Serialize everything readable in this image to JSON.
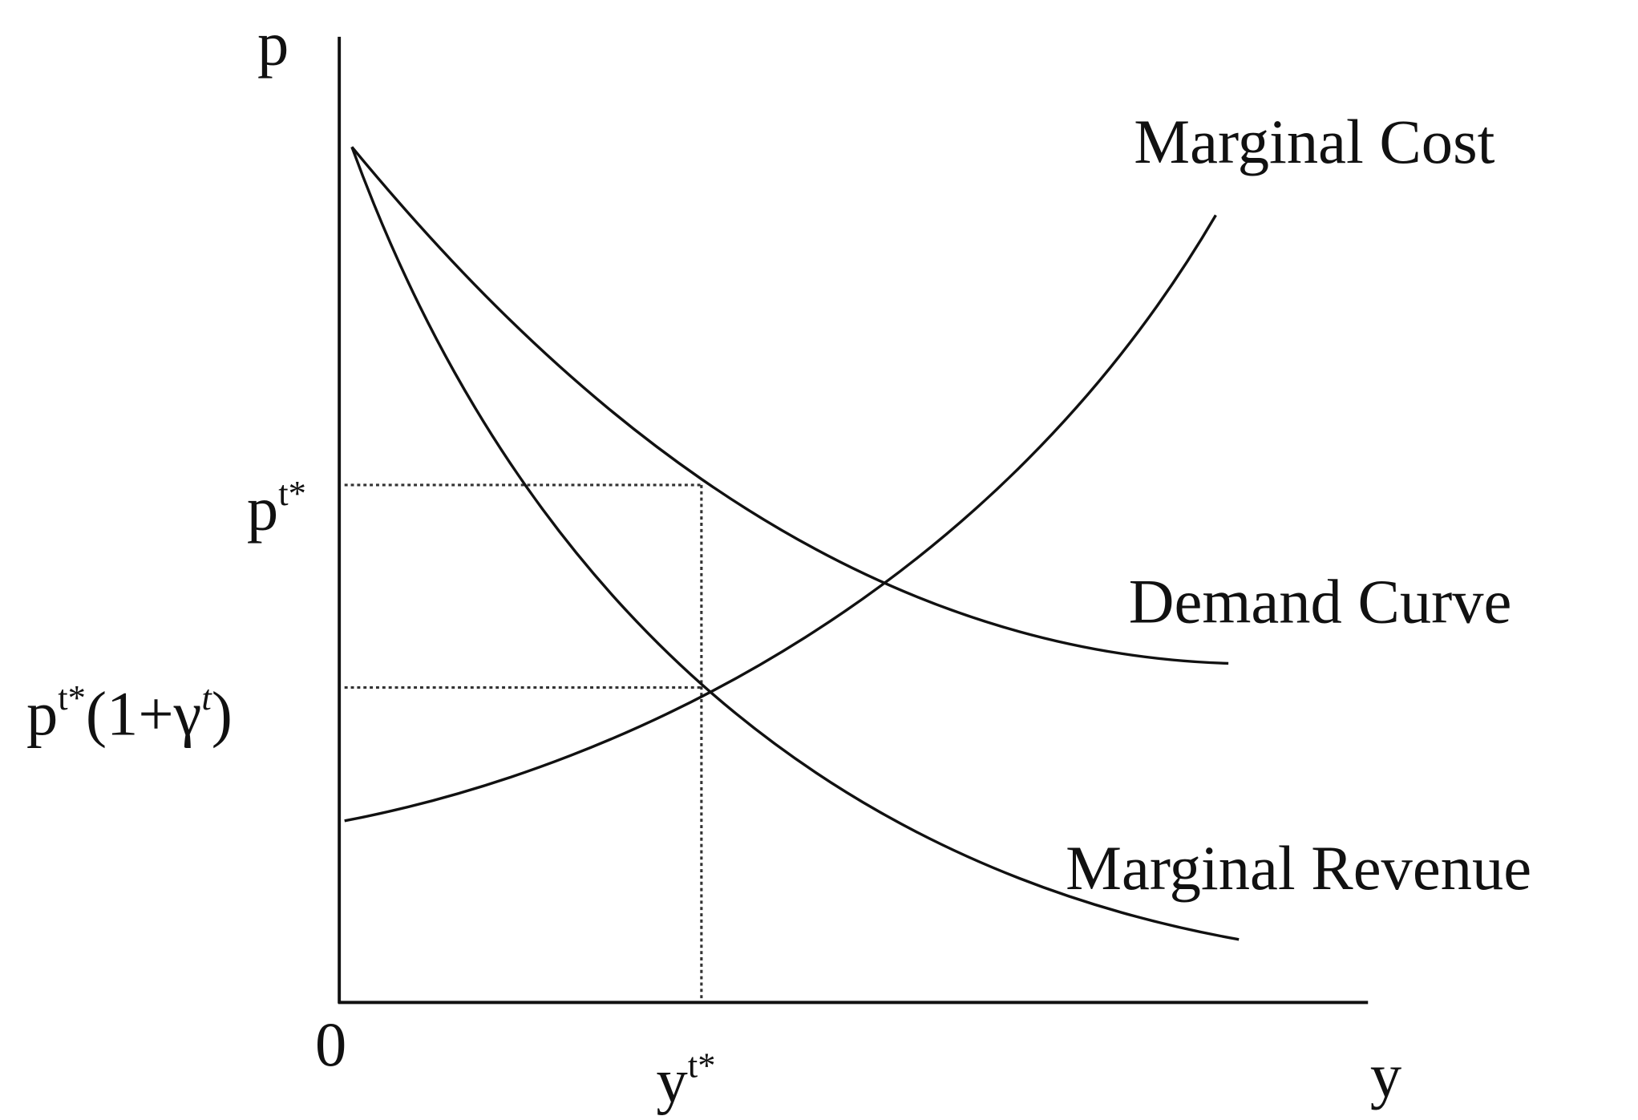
{
  "axes": {
    "y_label": "p",
    "x_label": "y",
    "origin": "0"
  },
  "ticks": {
    "price": {
      "base": "p",
      "sup": "t*"
    },
    "price_markup": {
      "base": "p",
      "sup": "t*",
      "rest": "(1+γ",
      "rest_sup": "t",
      "close": ")"
    },
    "quantity": {
      "base": "y",
      "sup": "t*"
    }
  },
  "curves": {
    "marginal_cost": "Marginal Cost",
    "demand": "Demand Curve",
    "marginal_revenue": "Marginal Revenue"
  }
}
